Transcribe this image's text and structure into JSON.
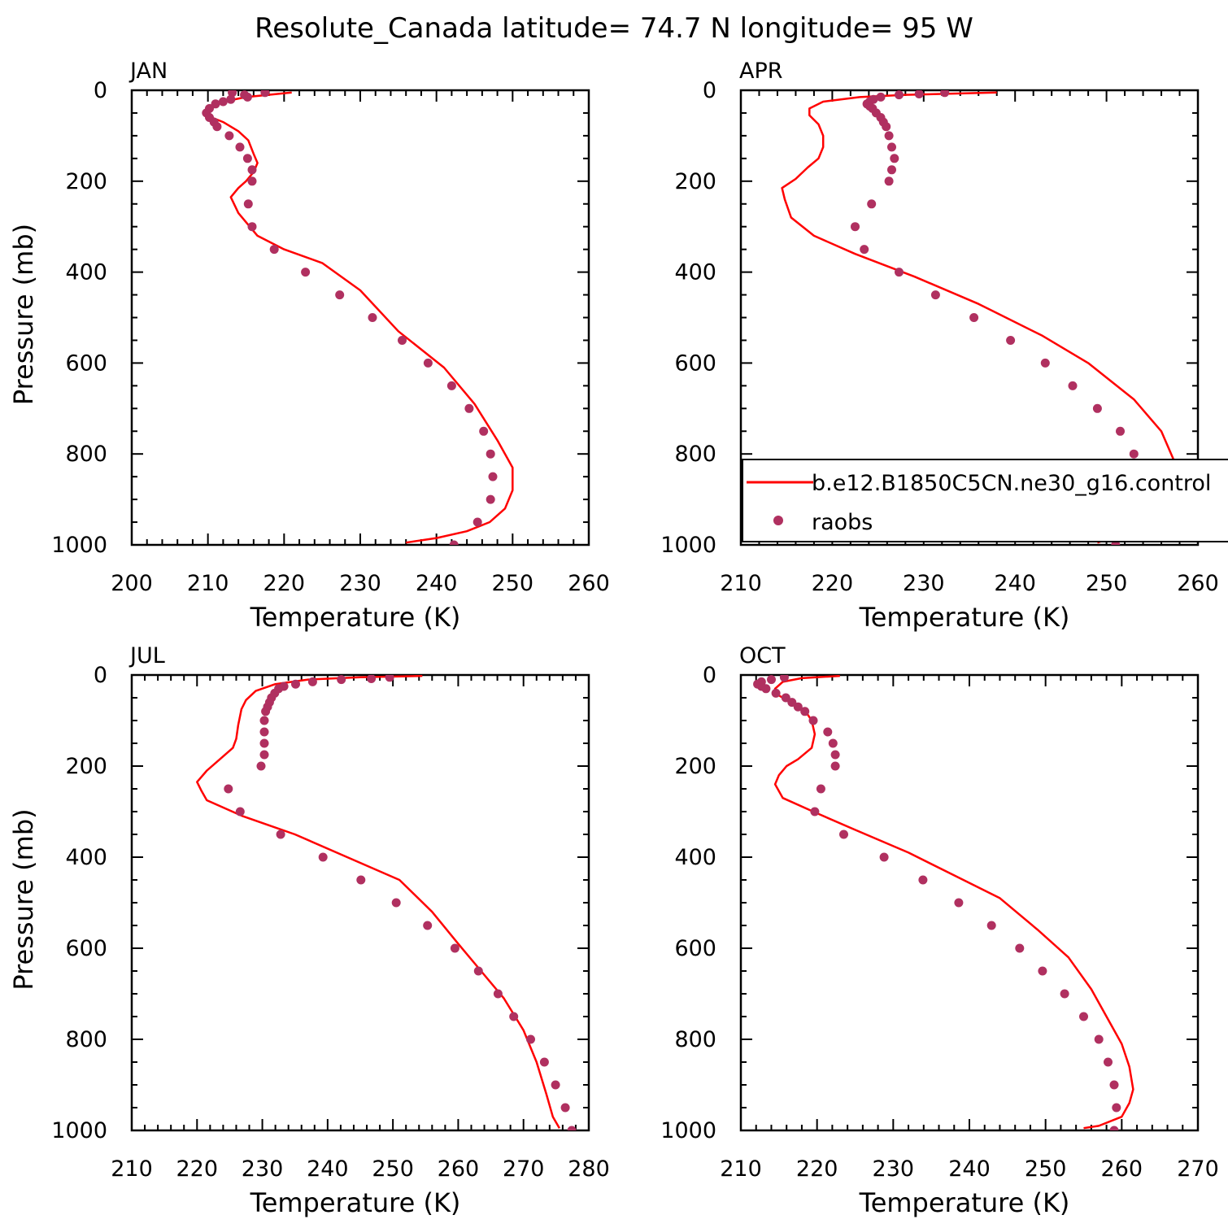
{
  "figure": {
    "title": "Resolute_Canada  latitude= 74.7 N longitude= 95 W"
  },
  "legend": {
    "model_label": "b.e12.B1850C5CN.ne30_g16.control",
    "obs_label": "raobs",
    "line_color": "#ff0000",
    "marker_color": "#b03060"
  },
  "chart_data": [
    {
      "type": "line",
      "panel_label": "JAN",
      "xlabel": "Temperature (K)",
      "ylabel": "Pressure (mb)",
      "xlim": [
        200,
        260
      ],
      "ylim": [
        1000,
        0
      ],
      "xticks": [
        200,
        210,
        220,
        230,
        240,
        250,
        260
      ],
      "yticks": [
        0,
        200,
        400,
        600,
        800,
        1000
      ],
      "series": [
        {
          "style": "line",
          "points": [
            [
              221,
              5
            ],
            [
              215,
              15
            ],
            [
              212,
              25
            ],
            [
              210.5,
              35
            ],
            [
              210,
              50
            ],
            [
              210.5,
              60
            ],
            [
              212,
              70
            ],
            [
              214,
              90
            ],
            [
              215.3,
              110
            ],
            [
              216,
              140
            ],
            [
              216.5,
              160
            ],
            [
              216,
              180
            ],
            [
              215,
              200
            ],
            [
              214,
              215
            ],
            [
              213,
              235
            ],
            [
              214,
              270
            ],
            [
              216.5,
              320
            ],
            [
              220,
              350
            ],
            [
              225,
              380
            ],
            [
              230,
              440
            ],
            [
              235,
              530
            ],
            [
              241,
              610
            ],
            [
              245,
              690
            ],
            [
              248,
              770
            ],
            [
              250,
              830
            ],
            [
              250,
              880
            ],
            [
              249,
              920
            ],
            [
              247,
              950
            ],
            [
              244,
              970
            ],
            [
              240,
              985
            ],
            [
              236,
              995
            ]
          ]
        },
        {
          "style": "scatter",
          "points": [
            [
              217.5,
              5
            ],
            [
              213.2,
              5
            ],
            [
              214.8,
              10
            ],
            [
              215.2,
              15
            ],
            [
              213,
              20
            ],
            [
              212,
              25
            ],
            [
              211,
              30
            ],
            [
              210.2,
              40
            ],
            [
              209.8,
              50
            ],
            [
              210.2,
              60
            ],
            [
              210.8,
              70
            ],
            [
              211.2,
              80
            ],
            [
              212.8,
              100
            ],
            [
              214.2,
              125
            ],
            [
              215.2,
              150
            ],
            [
              215.8,
              175
            ],
            [
              215.8,
              200
            ],
            [
              215.3,
              250
            ],
            [
              215.8,
              300
            ],
            [
              218.7,
              350
            ],
            [
              222.8,
              400
            ],
            [
              227.3,
              450
            ],
            [
              231.6,
              500
            ],
            [
              235.5,
              550
            ],
            [
              238.9,
              600
            ],
            [
              242,
              650
            ],
            [
              244.3,
              700
            ],
            [
              246.2,
              750
            ],
            [
              247.1,
              800
            ],
            [
              247.4,
              850
            ],
            [
              247.1,
              900
            ],
            [
              245.4,
              950
            ],
            [
              242.3,
              1000
            ]
          ]
        }
      ]
    },
    {
      "type": "line",
      "panel_label": "APR",
      "xlabel": "Temperature (K)",
      "ylabel": "",
      "xlim": [
        210,
        260
      ],
      "ylim": [
        1000,
        0
      ],
      "xticks": [
        210,
        220,
        230,
        240,
        250,
        260
      ],
      "yticks": [
        0,
        200,
        400,
        600,
        800,
        1000
      ],
      "series": [
        {
          "style": "line",
          "points": [
            [
              238,
              5
            ],
            [
              228,
              10
            ],
            [
              223,
              15
            ],
            [
              219,
              25
            ],
            [
              217.5,
              40
            ],
            [
              217.5,
              55
            ],
            [
              218.5,
              75
            ],
            [
              219,
              100
            ],
            [
              219,
              125
            ],
            [
              218.5,
              150
            ],
            [
              217.3,
              170
            ],
            [
              216,
              195
            ],
            [
              214.5,
              215
            ],
            [
              214.8,
              240
            ],
            [
              215.5,
              280
            ],
            [
              218,
              320
            ],
            [
              222.5,
              360
            ],
            [
              229,
              410
            ],
            [
              236,
              470
            ],
            [
              243,
              540
            ],
            [
              248,
              600
            ],
            [
              253,
              680
            ],
            [
              256,
              750
            ],
            [
              257.5,
              820
            ],
            [
              257.5,
              880
            ],
            [
              257,
              920
            ],
            [
              255,
              950
            ],
            [
              252,
              975
            ],
            [
              249,
              995
            ]
          ]
        },
        {
          "style": "scatter",
          "points": [
            [
              232.3,
              5
            ],
            [
              229.5,
              8
            ],
            [
              227.3,
              10
            ],
            [
              225.3,
              15
            ],
            [
              224.5,
              20
            ],
            [
              224.1,
              25
            ],
            [
              223.8,
              30
            ],
            [
              224.1,
              35
            ],
            [
              224.4,
              40
            ],
            [
              224.8,
              50
            ],
            [
              225.3,
              60
            ],
            [
              225.6,
              70
            ],
            [
              225.9,
              80
            ],
            [
              226.2,
              100
            ],
            [
              226.5,
              125
            ],
            [
              226.8,
              150
            ],
            [
              226.5,
              175
            ],
            [
              226.2,
              200
            ],
            [
              224.3,
              250
            ],
            [
              222.5,
              300
            ],
            [
              223.5,
              350
            ],
            [
              227.3,
              400
            ],
            [
              231.3,
              450
            ],
            [
              235.5,
              500
            ],
            [
              239.5,
              550
            ],
            [
              243.3,
              600
            ],
            [
              246.3,
              650
            ],
            [
              249,
              700
            ],
            [
              251.5,
              750
            ],
            [
              253,
              800
            ],
            [
              253.8,
              850
            ],
            [
              254.1,
              900
            ],
            [
              253.3,
              950
            ],
            [
              251,
              1000
            ]
          ]
        }
      ]
    },
    {
      "type": "line",
      "panel_label": "JUL",
      "xlabel": "Temperature (K)",
      "ylabel": "Pressure (mb)",
      "xlim": [
        210,
        280
      ],
      "ylim": [
        1000,
        0
      ],
      "xticks": [
        210,
        220,
        230,
        240,
        250,
        260,
        270,
        280
      ],
      "yticks": [
        0,
        200,
        400,
        600,
        800,
        1000
      ],
      "series": [
        {
          "style": "line",
          "points": [
            [
              254.5,
              2
            ],
            [
              245,
              5
            ],
            [
              237,
              10
            ],
            [
              232,
              20
            ],
            [
              229,
              35
            ],
            [
              227.5,
              55
            ],
            [
              226.8,
              75
            ],
            [
              226.3,
              110
            ],
            [
              226,
              140
            ],
            [
              225.5,
              160
            ],
            [
              223.5,
              185
            ],
            [
              221.5,
              210
            ],
            [
              220,
              235
            ],
            [
              220.7,
              255
            ],
            [
              221.5,
              275
            ],
            [
              227,
              310
            ],
            [
              235,
              350
            ],
            [
              243,
              400
            ],
            [
              251,
              450
            ],
            [
              256,
              520
            ],
            [
              260,
              590
            ],
            [
              263.5,
              650
            ],
            [
              267,
              710
            ],
            [
              270,
              780
            ],
            [
              272,
              850
            ],
            [
              273.5,
              920
            ],
            [
              274.5,
              970
            ],
            [
              275.5,
              995
            ]
          ]
        },
        {
          "style": "scatter",
          "points": [
            [
              249.5,
              5
            ],
            [
              246.7,
              8
            ],
            [
              242.1,
              10
            ],
            [
              237.7,
              15
            ],
            [
              235.1,
              20
            ],
            [
              233.3,
              25
            ],
            [
              232.5,
              30
            ],
            [
              231.9,
              40
            ],
            [
              231.4,
              50
            ],
            [
              231.1,
              60
            ],
            [
              230.8,
              70
            ],
            [
              230.5,
              80
            ],
            [
              230.3,
              100
            ],
            [
              230.3,
              125
            ],
            [
              230.3,
              150
            ],
            [
              230.3,
              175
            ],
            [
              229.8,
              200
            ],
            [
              224.8,
              250
            ],
            [
              226.6,
              300
            ],
            [
              232.8,
              350
            ],
            [
              239.3,
              400
            ],
            [
              245.1,
              450
            ],
            [
              250.5,
              500
            ],
            [
              255.3,
              550
            ],
            [
              259.5,
              600
            ],
            [
              263.1,
              650
            ],
            [
              266.1,
              700
            ],
            [
              268.5,
              750
            ],
            [
              271.1,
              800
            ],
            [
              273.2,
              850
            ],
            [
              274.9,
              900
            ],
            [
              276.4,
              950
            ],
            [
              277.4,
              1000
            ]
          ]
        }
      ]
    },
    {
      "type": "line",
      "panel_label": "OCT",
      "xlabel": "Temperature (K)",
      "ylabel": "",
      "xlim": [
        210,
        270
      ],
      "ylim": [
        1000,
        0
      ],
      "xticks": [
        210,
        220,
        230,
        240,
        250,
        260,
        270
      ],
      "yticks": [
        0,
        200,
        400,
        600,
        800,
        1000
      ],
      "series": [
        {
          "style": "line",
          "points": [
            [
              223,
              2
            ],
            [
              218,
              7
            ],
            [
              215.5,
              15
            ],
            [
              214.5,
              30
            ],
            [
              215,
              45
            ],
            [
              216.5,
              60
            ],
            [
              218.5,
              80
            ],
            [
              219.3,
              100
            ],
            [
              219.7,
              130
            ],
            [
              219.3,
              160
            ],
            [
              217.5,
              185
            ],
            [
              216,
              200
            ],
            [
              215,
              220
            ],
            [
              214.5,
              240
            ],
            [
              215.5,
              270
            ],
            [
              219.5,
              300
            ],
            [
              225,
              340
            ],
            [
              232,
              390
            ],
            [
              238,
              440
            ],
            [
              244,
              490
            ],
            [
              249,
              560
            ],
            [
              253,
              620
            ],
            [
              256,
              690
            ],
            [
              258,
              750
            ],
            [
              260,
              810
            ],
            [
              261,
              860
            ],
            [
              261.5,
              910
            ],
            [
              261,
              940
            ],
            [
              260,
              970
            ],
            [
              257,
              990
            ],
            [
              255,
              995
            ]
          ]
        },
        {
          "style": "scatter",
          "points": [
            [
              215.7,
              5
            ],
            [
              214,
              10
            ],
            [
              212.7,
              15
            ],
            [
              212.2,
              20
            ],
            [
              212.7,
              25
            ],
            [
              213.3,
              30
            ],
            [
              214.6,
              40
            ],
            [
              215.9,
              50
            ],
            [
              216.7,
              60
            ],
            [
              217.5,
              70
            ],
            [
              218.4,
              80
            ],
            [
              219.5,
              100
            ],
            [
              221.4,
              125
            ],
            [
              222.1,
              150
            ],
            [
              222.4,
              175
            ],
            [
              222.4,
              200
            ],
            [
              220.5,
              250
            ],
            [
              219.7,
              300
            ],
            [
              223.5,
              350
            ],
            [
              228.8,
              400
            ],
            [
              233.9,
              450
            ],
            [
              238.6,
              500
            ],
            [
              242.9,
              550
            ],
            [
              246.6,
              600
            ],
            [
              249.6,
              650
            ],
            [
              252.5,
              700
            ],
            [
              255,
              750
            ],
            [
              257,
              800
            ],
            [
              258.2,
              850
            ],
            [
              259,
              900
            ],
            [
              259.3,
              950
            ],
            [
              259,
              1000
            ]
          ]
        }
      ]
    }
  ]
}
